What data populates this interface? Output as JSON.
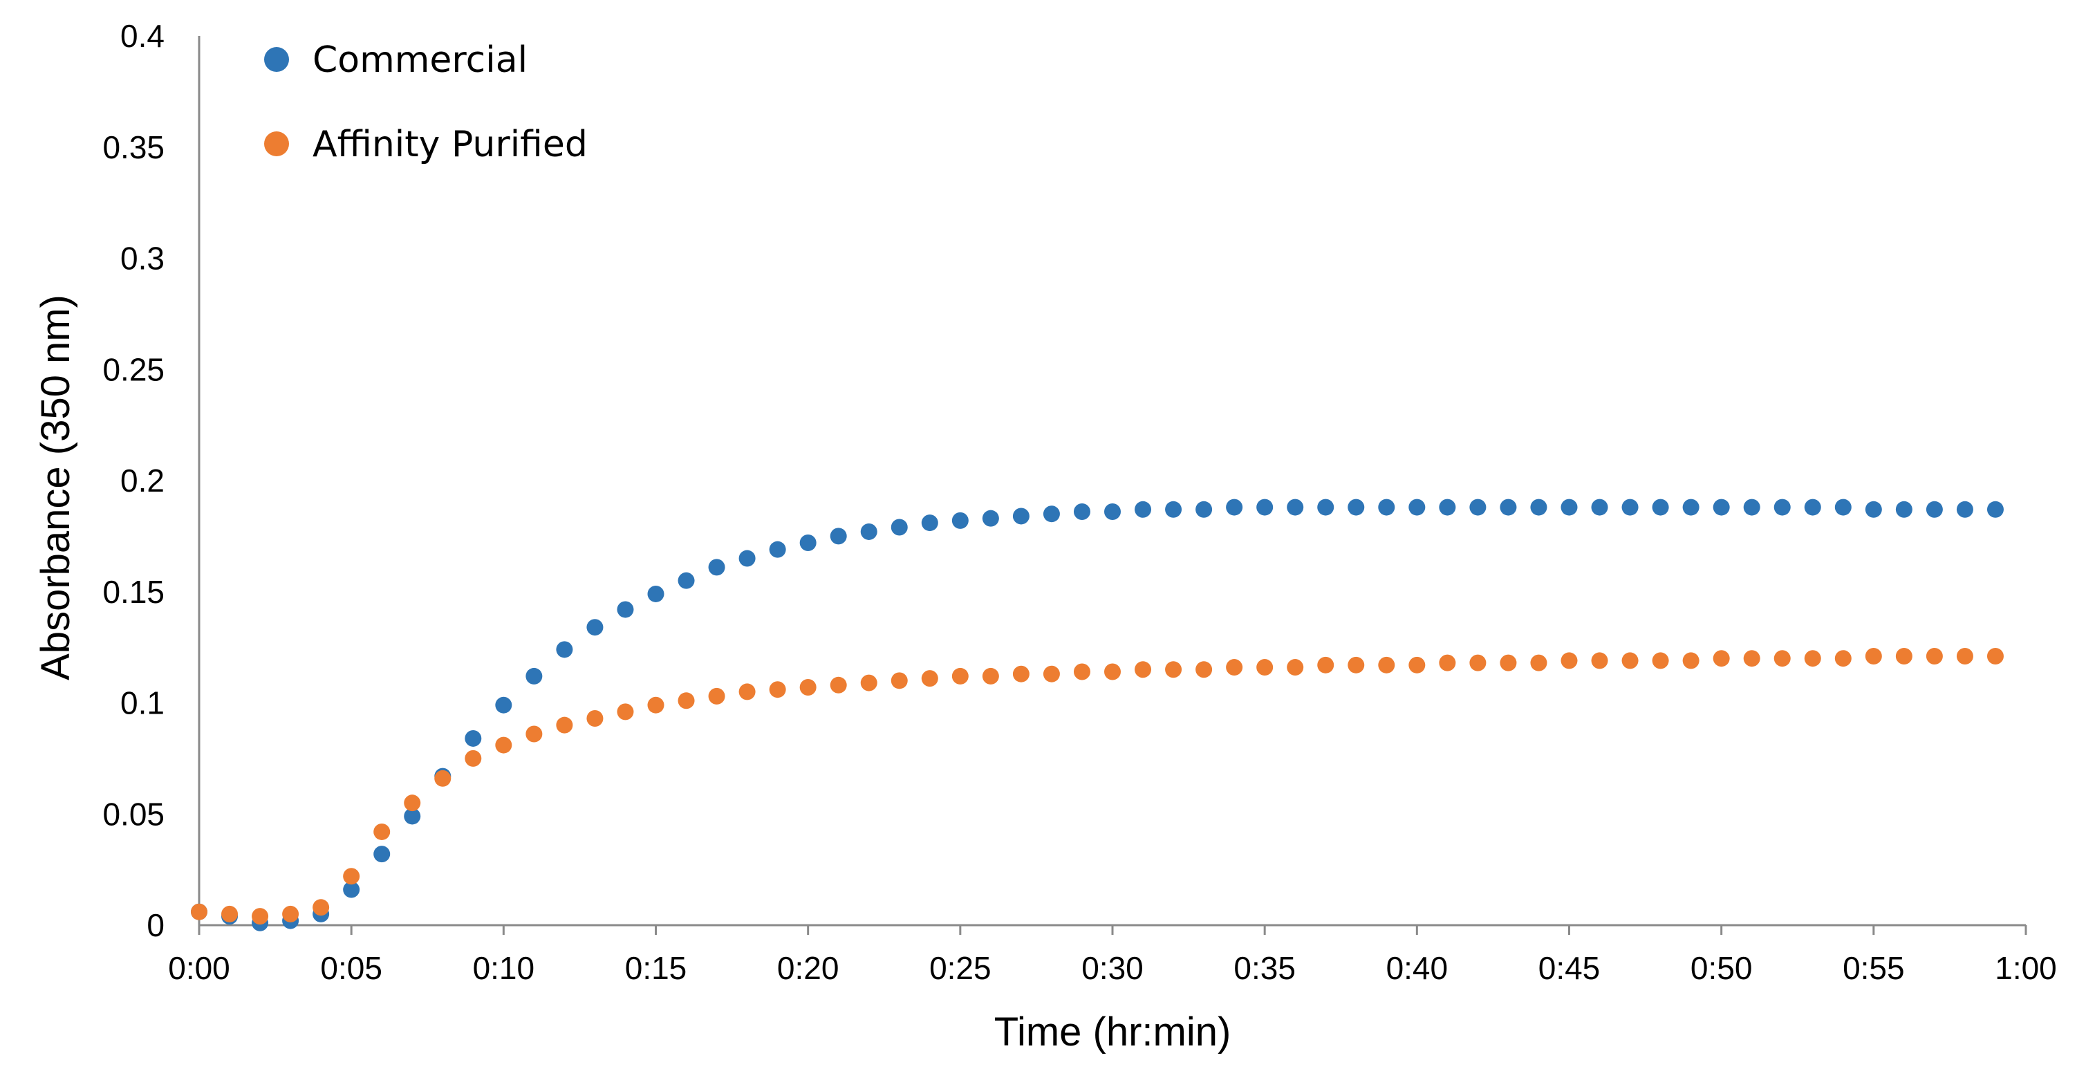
{
  "chart_data": {
    "type": "scatter",
    "title": "",
    "xlabel": "Time (hr:min)",
    "ylabel": "Absorbance (350 nm)",
    "xlim": [
      0,
      60
    ],
    "ylim": [
      0,
      0.4
    ],
    "x_unit": "minutes",
    "x_ticks": [
      {
        "value": 0,
        "label": "0:00"
      },
      {
        "value": 5,
        "label": "0:05"
      },
      {
        "value": 10,
        "label": "0:10"
      },
      {
        "value": 15,
        "label": "0:15"
      },
      {
        "value": 20,
        "label": "0:20"
      },
      {
        "value": 25,
        "label": "0:25"
      },
      {
        "value": 30,
        "label": "0:30"
      },
      {
        "value": 35,
        "label": "0:35"
      },
      {
        "value": 40,
        "label": "0:40"
      },
      {
        "value": 45,
        "label": "0:45"
      },
      {
        "value": 50,
        "label": "0:50"
      },
      {
        "value": 55,
        "label": "0:55"
      },
      {
        "value": 60,
        "label": "1:00"
      }
    ],
    "y_ticks": [
      {
        "value": 0,
        "label": "0"
      },
      {
        "value": 0.05,
        "label": "0.05"
      },
      {
        "value": 0.1,
        "label": "0.1"
      },
      {
        "value": 0.15,
        "label": "0.15"
      },
      {
        "value": 0.2,
        "label": "0.2"
      },
      {
        "value": 0.25,
        "label": "0.25"
      },
      {
        "value": 0.3,
        "label": "0.3"
      },
      {
        "value": 0.35,
        "label": "0.35"
      },
      {
        "value": 0.4,
        "label": "0.4"
      }
    ],
    "grid": false,
    "legend_position": "top-left",
    "series": [
      {
        "name": "Commercial",
        "color": "#2e75b6",
        "x": [
          0,
          1,
          2,
          3,
          4,
          5,
          6,
          7,
          8,
          9,
          10,
          11,
          12,
          13,
          14,
          15,
          16,
          17,
          18,
          19,
          20,
          21,
          22,
          23,
          24,
          25,
          26,
          27,
          28,
          29,
          30,
          31,
          32,
          33,
          34,
          35,
          36,
          37,
          38,
          39,
          40,
          41,
          42,
          43,
          44,
          45,
          46,
          47,
          48,
          49,
          50,
          51,
          52,
          53,
          54,
          55,
          56,
          57,
          58,
          59
        ],
        "y": [
          0.006,
          0.004,
          0.001,
          0.002,
          0.005,
          0.016,
          0.032,
          0.049,
          0.067,
          0.084,
          0.099,
          0.112,
          0.124,
          0.134,
          0.142,
          0.149,
          0.155,
          0.161,
          0.165,
          0.169,
          0.172,
          0.175,
          0.177,
          0.179,
          0.181,
          0.182,
          0.183,
          0.184,
          0.185,
          0.186,
          0.186,
          0.187,
          0.187,
          0.187,
          0.188,
          0.188,
          0.188,
          0.188,
          0.188,
          0.188,
          0.188,
          0.188,
          0.188,
          0.188,
          0.188,
          0.188,
          0.188,
          0.188,
          0.188,
          0.188,
          0.188,
          0.188,
          0.188,
          0.188,
          0.188,
          0.187,
          0.187,
          0.187,
          0.187,
          0.187
        ]
      },
      {
        "name": "Affinity Purified",
        "color": "#ed7d31",
        "x": [
          0,
          1,
          2,
          3,
          4,
          5,
          6,
          7,
          8,
          9,
          10,
          11,
          12,
          13,
          14,
          15,
          16,
          17,
          18,
          19,
          20,
          21,
          22,
          23,
          24,
          25,
          26,
          27,
          28,
          29,
          30,
          31,
          32,
          33,
          34,
          35,
          36,
          37,
          38,
          39,
          40,
          41,
          42,
          43,
          44,
          45,
          46,
          47,
          48,
          49,
          50,
          51,
          52,
          53,
          54,
          55,
          56,
          57,
          58,
          59
        ],
        "y": [
          0.006,
          0.005,
          0.004,
          0.005,
          0.008,
          0.022,
          0.042,
          0.055,
          0.066,
          0.075,
          0.081,
          0.086,
          0.09,
          0.093,
          0.096,
          0.099,
          0.101,
          0.103,
          0.105,
          0.106,
          0.107,
          0.108,
          0.109,
          0.11,
          0.111,
          0.112,
          0.112,
          0.113,
          0.113,
          0.114,
          0.114,
          0.115,
          0.115,
          0.115,
          0.116,
          0.116,
          0.116,
          0.117,
          0.117,
          0.117,
          0.117,
          0.118,
          0.118,
          0.118,
          0.118,
          0.119,
          0.119,
          0.119,
          0.119,
          0.119,
          0.12,
          0.12,
          0.12,
          0.12,
          0.12,
          0.121,
          0.121,
          0.121,
          0.121,
          0.121
        ]
      }
    ]
  }
}
